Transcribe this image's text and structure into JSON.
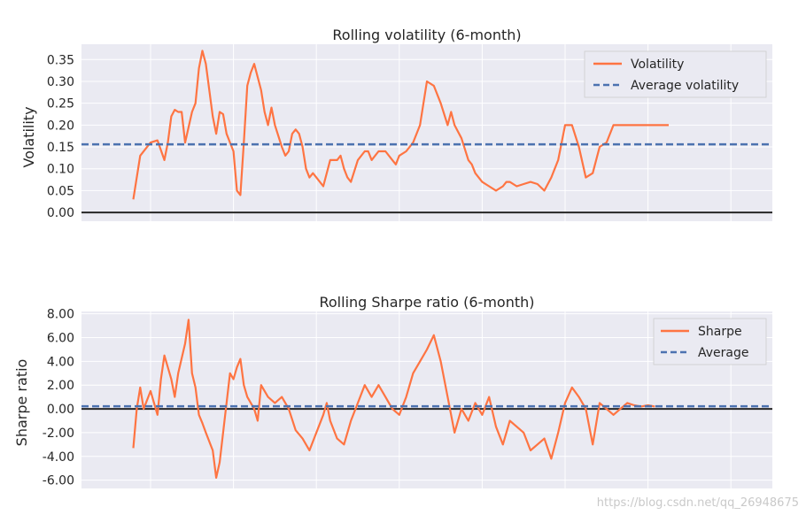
{
  "watermark": "https://blog.csdn.net/qq_26948675",
  "colors": {
    "background": "#eaeaf2",
    "grid": "#ffffff",
    "series": "#fe7442",
    "average": "#4c72b0",
    "zero_line": "#262626"
  },
  "chart_data": [
    {
      "type": "line",
      "title": "Rolling volatility (6-month)",
      "xlabel": "",
      "ylabel": "Volatility",
      "ylim": [
        -0.02,
        0.385
      ],
      "xlim": [
        0,
        1
      ],
      "yticks": [
        "0.00",
        "0.05",
        "0.10",
        "0.15",
        "0.20",
        "0.25",
        "0.30",
        "0.35"
      ],
      "yticks_values": [
        0,
        0.05,
        0.1,
        0.15,
        0.2,
        0.25,
        0.3,
        0.35
      ],
      "legend": {
        "position": "top-right",
        "entries": [
          "Volatility",
          "Average volatility"
        ]
      },
      "grid": true,
      "series": [
        {
          "name": "Volatility",
          "x": [
            0.075,
            0.085,
            0.1,
            0.11,
            0.12,
            0.125,
            0.13,
            0.135,
            0.14,
            0.145,
            0.15,
            0.16,
            0.165,
            0.17,
            0.175,
            0.18,
            0.19,
            0.195,
            0.2,
            0.205,
            0.21,
            0.215,
            0.22,
            0.225,
            0.23,
            0.235,
            0.24,
            0.245,
            0.25,
            0.26,
            0.265,
            0.27,
            0.275,
            0.28,
            0.29,
            0.295,
            0.3,
            0.305,
            0.31,
            0.315,
            0.32,
            0.325,
            0.33,
            0.335,
            0.34,
            0.35,
            0.36,
            0.37,
            0.375,
            0.38,
            0.385,
            0.39,
            0.4,
            0.41,
            0.415,
            0.42,
            0.43,
            0.44,
            0.45,
            0.455,
            0.46,
            0.47,
            0.48,
            0.49,
            0.5,
            0.51,
            0.52,
            0.53,
            0.535,
            0.54,
            0.55,
            0.56,
            0.565,
            0.57,
            0.58,
            0.59,
            0.6,
            0.61,
            0.615,
            0.62,
            0.63,
            0.64,
            0.65,
            0.66,
            0.67,
            0.68,
            0.69,
            0.7,
            0.71,
            0.72,
            0.73,
            0.74,
            0.75,
            0.76,
            0.77,
            0.78,
            0.79,
            0.8,
            0.81,
            0.82,
            0.83,
            0.84,
            0.85
          ],
          "y": [
            0.03,
            0.13,
            0.16,
            0.165,
            0.12,
            0.16,
            0.22,
            0.235,
            0.23,
            0.23,
            0.16,
            0.23,
            0.25,
            0.33,
            0.37,
            0.34,
            0.22,
            0.18,
            0.23,
            0.225,
            0.18,
            0.16,
            0.14,
            0.05,
            0.04,
            0.16,
            0.29,
            0.32,
            0.34,
            0.28,
            0.23,
            0.2,
            0.24,
            0.2,
            0.15,
            0.13,
            0.14,
            0.18,
            0.19,
            0.18,
            0.15,
            0.1,
            0.08,
            0.09,
            0.08,
            0.06,
            0.12,
            0.12,
            0.13,
            0.1,
            0.08,
            0.07,
            0.12,
            0.14,
            0.14,
            0.12,
            0.14,
            0.14,
            0.12,
            0.11,
            0.13,
            0.14,
            0.16,
            0.2,
            0.3,
            0.29,
            0.25,
            0.2,
            0.23,
            0.2,
            0.17,
            0.12,
            0.11,
            0.09,
            0.07,
            0.06,
            0.05,
            0.06,
            0.07,
            0.07,
            0.06,
            0.065,
            0.07,
            0.065,
            0.05,
            0.08,
            0.12,
            0.2,
            0.2,
            0.15,
            0.08,
            0.09,
            0.15,
            0.16,
            0.2,
            0.2,
            0.2,
            0.2,
            0.2,
            0.2,
            0.2,
            0.2,
            0.2
          ]
        },
        {
          "name": "Average volatility",
          "value": 0.156
        }
      ]
    },
    {
      "type": "line",
      "title": "Rolling Sharpe ratio (6-month)",
      "xlabel": "",
      "ylabel": "Sharpe ratio",
      "ylim": [
        -6.7,
        8.2
      ],
      "xlim": [
        0,
        1
      ],
      "yticks": [
        "-6.00",
        "-4.00",
        "-2.00",
        "0.00",
        "2.00",
        "4.00",
        "6.00",
        "8.00"
      ],
      "yticks_values": [
        -6,
        -4,
        -2,
        0,
        2,
        4,
        6,
        8
      ],
      "legend": {
        "position": "top-right",
        "entries": [
          "Sharpe",
          "Average"
        ]
      },
      "grid": true,
      "series": [
        {
          "name": "Sharpe",
          "x": [
            0.075,
            0.08,
            0.085,
            0.09,
            0.1,
            0.11,
            0.115,
            0.12,
            0.13,
            0.135,
            0.14,
            0.15,
            0.155,
            0.16,
            0.165,
            0.17,
            0.175,
            0.18,
            0.19,
            0.195,
            0.2,
            0.21,
            0.215,
            0.22,
            0.225,
            0.23,
            0.235,
            0.24,
            0.25,
            0.255,
            0.26,
            0.27,
            0.28,
            0.29,
            0.3,
            0.31,
            0.32,
            0.33,
            0.34,
            0.35,
            0.355,
            0.36,
            0.37,
            0.38,
            0.39,
            0.4,
            0.41,
            0.42,
            0.43,
            0.44,
            0.45,
            0.46,
            0.47,
            0.48,
            0.49,
            0.5,
            0.51,
            0.52,
            0.53,
            0.54,
            0.55,
            0.56,
            0.57,
            0.58,
            0.59,
            0.6,
            0.61,
            0.62,
            0.63,
            0.64,
            0.65,
            0.66,
            0.67,
            0.68,
            0.69,
            0.7,
            0.71,
            0.72,
            0.73,
            0.74,
            0.75,
            0.76,
            0.77,
            0.78,
            0.79,
            0.8,
            0.81,
            0.82,
            0.83
          ],
          "y": [
            -3.3,
            0.0,
            1.8,
            0.0,
            1.5,
            -0.5,
            2.5,
            4.5,
            2.5,
            1.0,
            3.0,
            5.5,
            7.5,
            3.0,
            1.8,
            -0.5,
            -1.2,
            -2.0,
            -3.5,
            -5.8,
            -4.5,
            0.5,
            3.0,
            2.5,
            3.5,
            4.2,
            2.0,
            1.0,
            0.0,
            -1.0,
            2.0,
            1.0,
            0.5,
            1.0,
            0.0,
            -1.8,
            -2.5,
            -3.5,
            -2.0,
            -0.5,
            0.5,
            -1.0,
            -2.5,
            -3.0,
            -1.0,
            0.5,
            2.0,
            1.0,
            2.0,
            1.0,
            0.0,
            -0.5,
            1.0,
            3.0,
            4.0,
            5.0,
            6.2,
            4.0,
            1.0,
            -2.0,
            0.0,
            -1.0,
            0.5,
            -0.5,
            1.0,
            -1.5,
            -3.0,
            -1.0,
            -1.5,
            -2.0,
            -3.5,
            -3.0,
            -2.5,
            -4.2,
            -2.0,
            0.5,
            1.8,
            1.0,
            0.0,
            -3.0,
            0.5,
            0.0,
            -0.5,
            0.0,
            0.5,
            0.3,
            0.2,
            0.3,
            0.2
          ]
        },
        {
          "name": "Average",
          "value": 0.22
        }
      ]
    }
  ]
}
